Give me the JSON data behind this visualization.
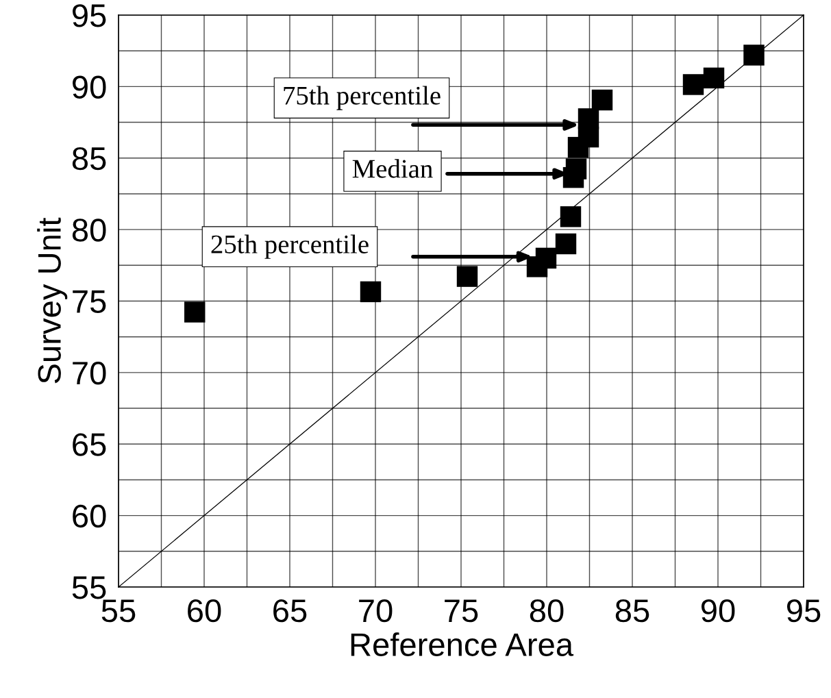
{
  "chart_data": {
    "type": "scatter",
    "xlabel": "Reference Area",
    "ylabel": "Survey Unit",
    "xlim": [
      55,
      95
    ],
    "ylim": [
      55,
      95
    ],
    "xticks": [
      55,
      {
        "value": 57.5,
        "label": null
      },
      60,
      {
        "value": 62.5,
        "label": null
      },
      65,
      {
        "value": 67.5,
        "label": null
      },
      70,
      {
        "value": 72.5,
        "label": null
      },
      75,
      {
        "value": 77.5,
        "label": null
      },
      80,
      {
        "value": 82.5,
        "label": null
      },
      85,
      {
        "value": 87.5,
        "label": null
      },
      90,
      {
        "value": 92.5,
        "label": null
      },
      95
    ],
    "yticks": [
      55,
      {
        "value": 57.5,
        "label": null
      },
      60,
      {
        "value": 62.5,
        "label": null
      },
      65,
      {
        "value": 67.5,
        "label": null
      },
      70,
      {
        "value": 72.5,
        "label": null
      },
      75,
      {
        "value": 77.5,
        "label": null
      },
      80,
      {
        "value": 82.5,
        "label": null
      },
      85,
      {
        "value": 87.5,
        "label": null
      },
      90,
      {
        "value": 92.5,
        "label": null
      },
      95
    ],
    "grid": true,
    "marker": "square",
    "series": [
      {
        "type": "line",
        "marker": "none",
        "color": "#000000",
        "x": [
          55,
          95
        ],
        "values": [
          55,
          95
        ]
      },
      {
        "color": "#000000",
        "x": [
          59.45,
          69.72,
          75.36,
          79.44,
          79.96,
          81.12,
          81.4,
          81.56,
          81.72,
          81.84,
          82.44,
          82.44,
          83.24,
          88.56,
          89.76,
          92.1
        ],
        "values": [
          74.23,
          75.65,
          76.72,
          77.4,
          78.0,
          79.0,
          80.9,
          83.64,
          84.24,
          85.75,
          86.47,
          87.75,
          89.06,
          90.14,
          90.6,
          92.2
        ]
      }
    ],
    "annotations": [
      "75th percentile",
      "Median",
      "25th percentile"
    ]
  }
}
